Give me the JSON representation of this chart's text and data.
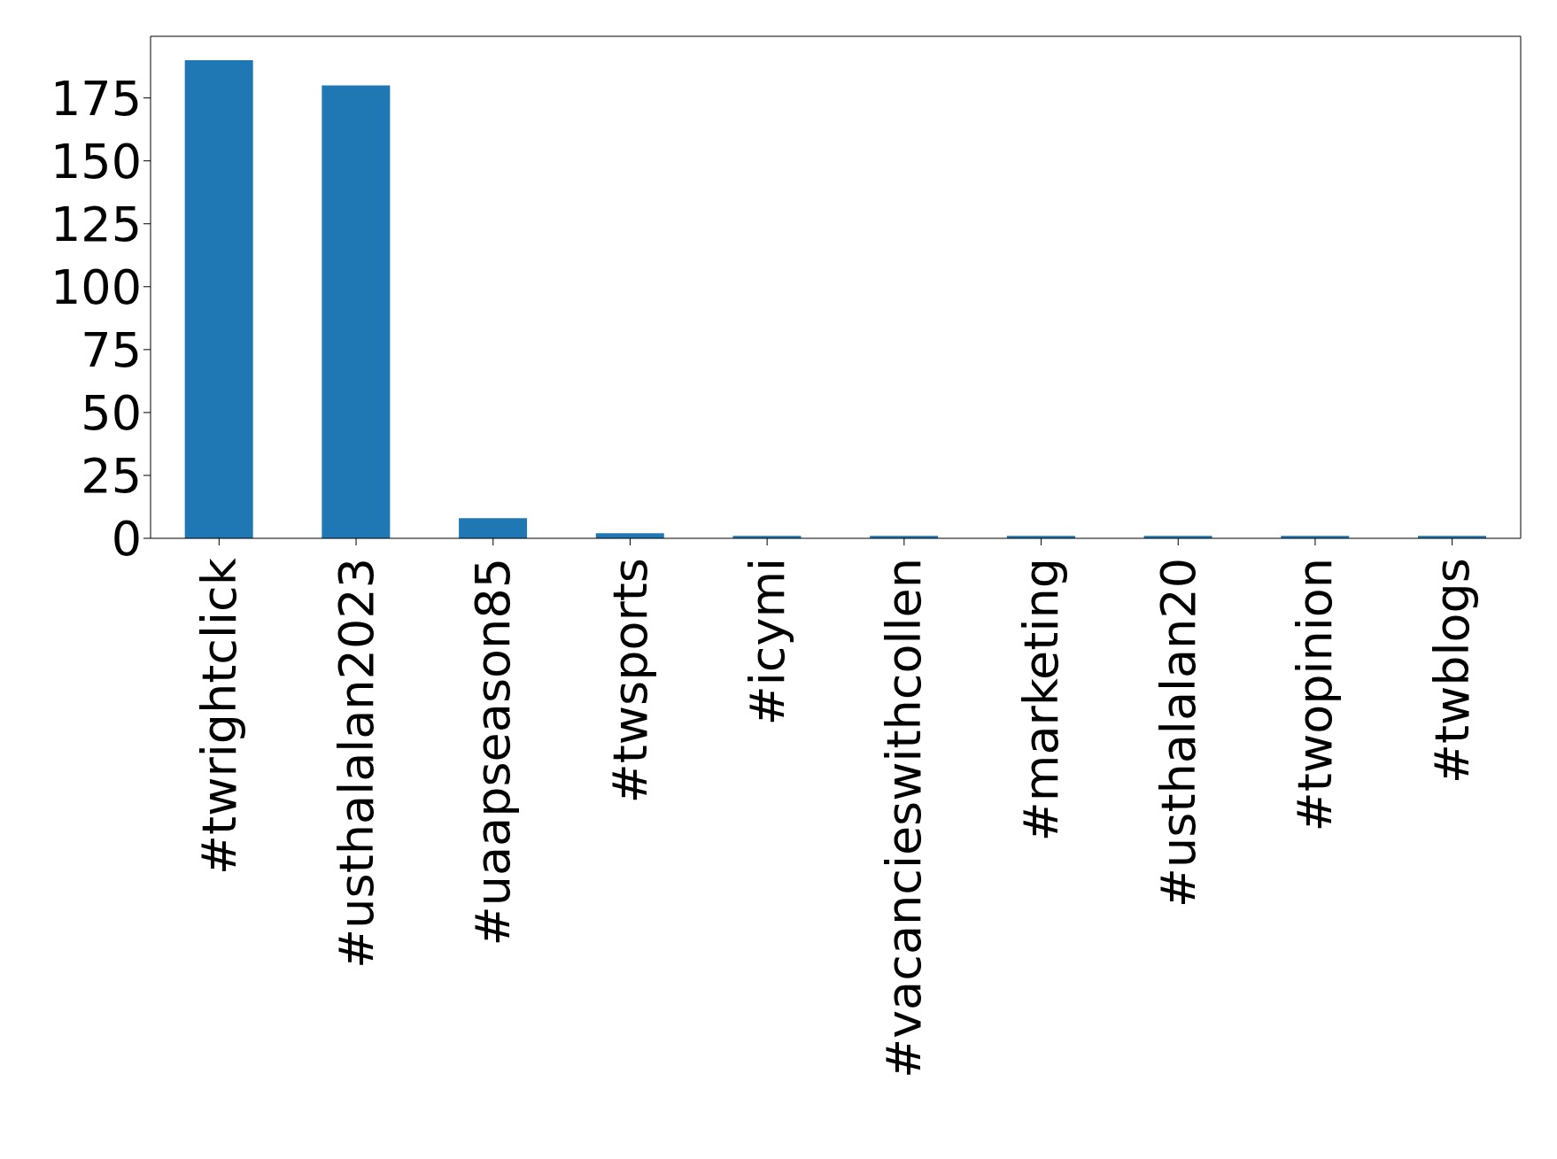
{
  "chart_data": {
    "type": "bar",
    "categories": [
      "#twrightclick",
      "#usthalalan2023",
      "#uaapseason85",
      "#twsports",
      "#icymi",
      "#vacancieswithcollen",
      "#marketing",
      "#usthalalan20",
      "#twopinion",
      "#twblogs"
    ],
    "values": [
      190,
      180,
      8,
      2,
      1,
      1,
      1,
      1,
      1,
      1
    ],
    "color": "#1f77b4",
    "ylim": [
      0,
      199.5
    ],
    "yticks": [
      0,
      25,
      50,
      75,
      100,
      125,
      150,
      175
    ],
    "grid": false,
    "legend": false
  }
}
